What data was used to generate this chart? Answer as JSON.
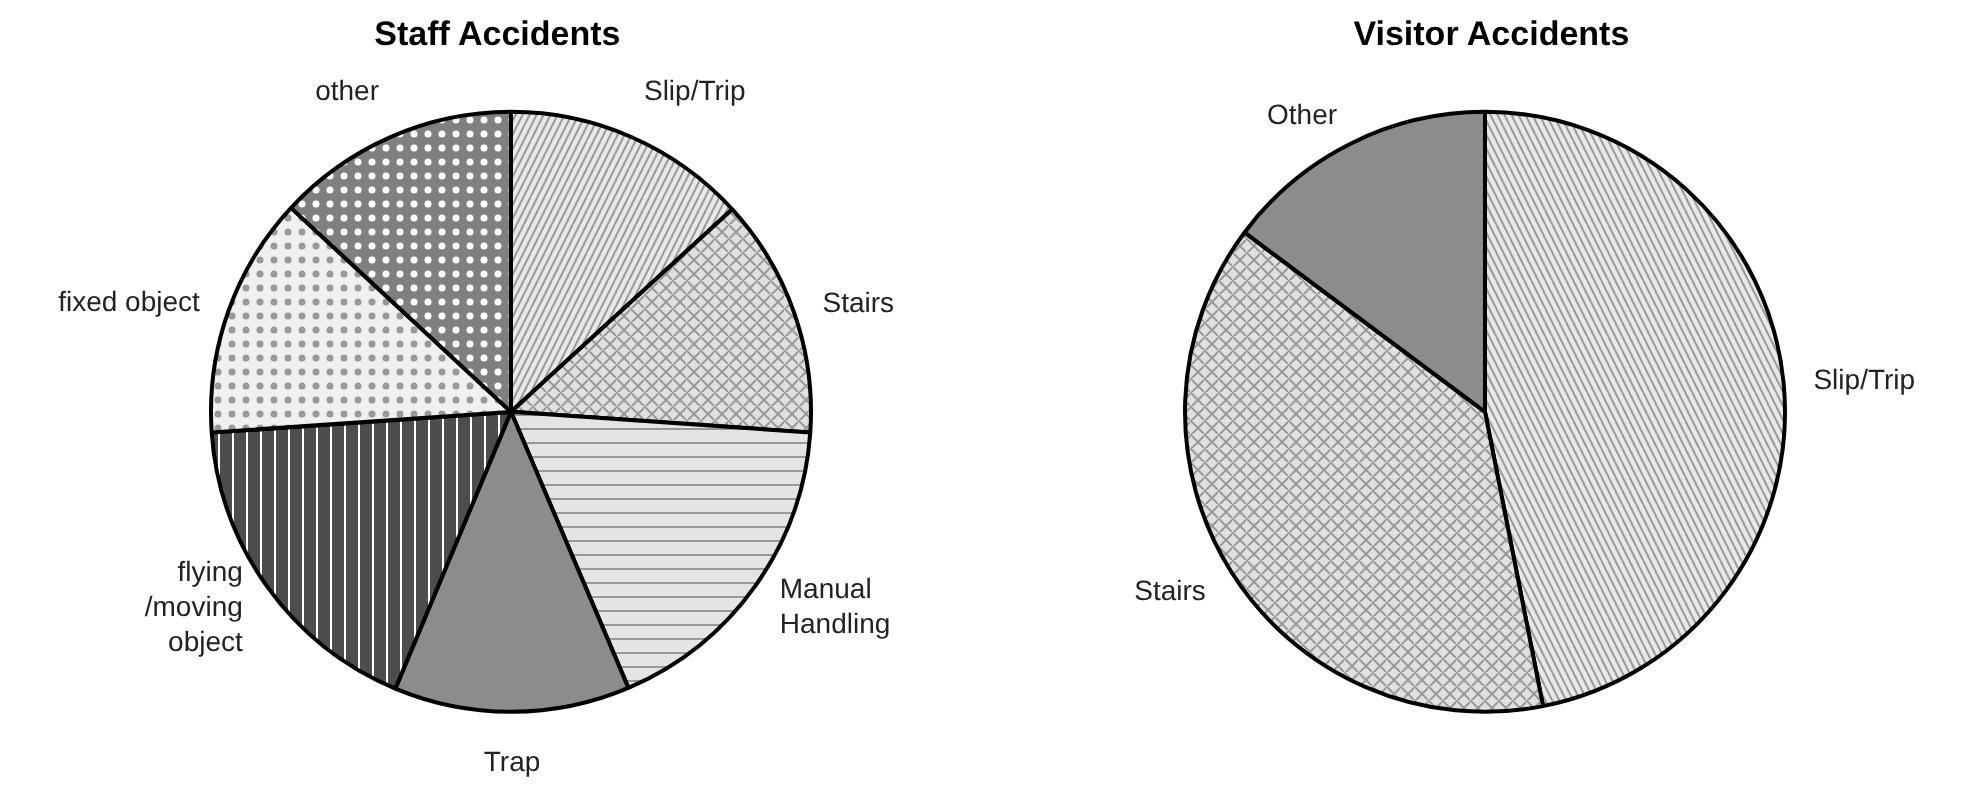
{
  "chart_data": [
    {
      "type": "pie",
      "title": "Staff Accidents",
      "categories": [
        "Slip/Trip",
        "Stairs",
        "Manual\nHandling",
        "Trap",
        "flying\n/moving\nobject",
        "fixed object",
        "other"
      ],
      "values": [
        13.2,
        12.9,
        17.5,
        12.7,
        17.6,
        13.0,
        13.1
      ],
      "colors": [
        "#e8e8e8",
        "#e0e0e0",
        "#e4e4e4",
        "#8c8c8c",
        "#4d4d4d",
        "#f0f0f0",
        "#808080"
      ]
    },
    {
      "type": "pie",
      "title": "Visitor Accidents",
      "categories": [
        "Slip/Trip",
        "Stairs",
        "Other"
      ],
      "values": [
        46.9,
        38.3,
        14.8
      ],
      "colors": [
        "#e8e8e8",
        "#e0e0e0",
        "#8c8c8c"
      ]
    }
  ]
}
